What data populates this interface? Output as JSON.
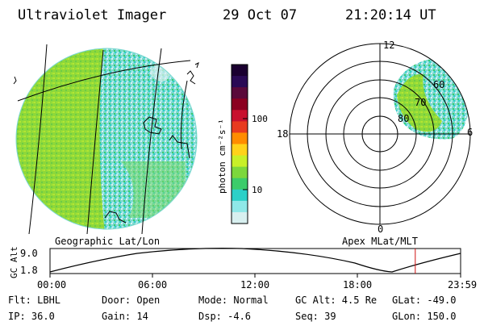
{
  "header": {
    "instrument": "Ultraviolet Imager",
    "date": "29 Oct 07",
    "time": "21:20:14 UT"
  },
  "colorbar": {
    "label": "photon cm⁻²s⁻¹",
    "ticks": [
      "100",
      "10"
    ],
    "colors": [
      "#1a0030",
      "#2a0a55",
      "#5a0a3a",
      "#8b0020",
      "#c8102e",
      "#e83a1f",
      "#ff8c00",
      "#ffd21a",
      "#c8f028",
      "#7cd83c",
      "#3ccc6a",
      "#2cd0c8",
      "#8fe8e8",
      "#d8f0f0"
    ]
  },
  "geo_panel": {
    "label": "Geographic Lat/Lon"
  },
  "polar_panel": {
    "label": "Apex MLat/MLT",
    "mlt_labels": {
      "top": "12",
      "left": "18",
      "right": "6",
      "bottom": "0"
    },
    "lat_labels": [
      "60",
      "70",
      "80"
    ]
  },
  "timeline": {
    "ylabel": "GC Alt",
    "ymax": "9.0",
    "ymin": "1.8",
    "x_ticks": [
      "00:00",
      "06:00",
      "12:00",
      "18:00",
      "23:59"
    ],
    "current_marker_time": "21:20",
    "marker_color": "#d01010"
  },
  "footer": {
    "filter": "Flt: LBHL",
    "door": "Door: Open",
    "mode": "Mode: Normal",
    "gc_alt": "GC Alt: 4.5 Re",
    "glat": "GLat: -49.0",
    "ip": "IP: 36.0",
    "gain": "Gain: 14",
    "dsp": "Dsp:    -4.6",
    "seq": "Seq: 39",
    "glon": "GLon: 150.0"
  }
}
